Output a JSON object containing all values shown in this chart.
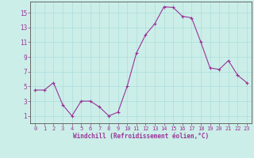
{
  "x": [
    0,
    1,
    2,
    3,
    4,
    5,
    6,
    7,
    8,
    9,
    10,
    11,
    12,
    13,
    14,
    15,
    16,
    17,
    18,
    19,
    20,
    21,
    22,
    23
  ],
  "y": [
    4.5,
    4.5,
    5.5,
    2.5,
    1.0,
    3.0,
    3.0,
    2.2,
    1.0,
    1.5,
    5.0,
    9.5,
    12.0,
    13.5,
    15.8,
    15.7,
    14.5,
    14.3,
    11.0,
    7.5,
    7.3,
    8.5,
    6.5,
    5.5
  ],
  "line_color": "#993399",
  "marker": "+",
  "marker_size": 3,
  "bg_color": "#cceee8",
  "grid_color": "#aadddd",
  "xlabel": "Windchill (Refroidissement éolien,°C)",
  "xlabel_color": "#993399",
  "tick_color": "#993399",
  "axis_color": "#555555",
  "ylim": [
    0,
    16.5
  ],
  "xlim": [
    -0.5,
    23.5
  ],
  "yticks": [
    1,
    3,
    5,
    7,
    9,
    11,
    13,
    15
  ],
  "xticks": [
    0,
    1,
    2,
    3,
    4,
    5,
    6,
    7,
    8,
    9,
    10,
    11,
    12,
    13,
    14,
    15,
    16,
    17,
    18,
    19,
    20,
    21,
    22,
    23
  ]
}
